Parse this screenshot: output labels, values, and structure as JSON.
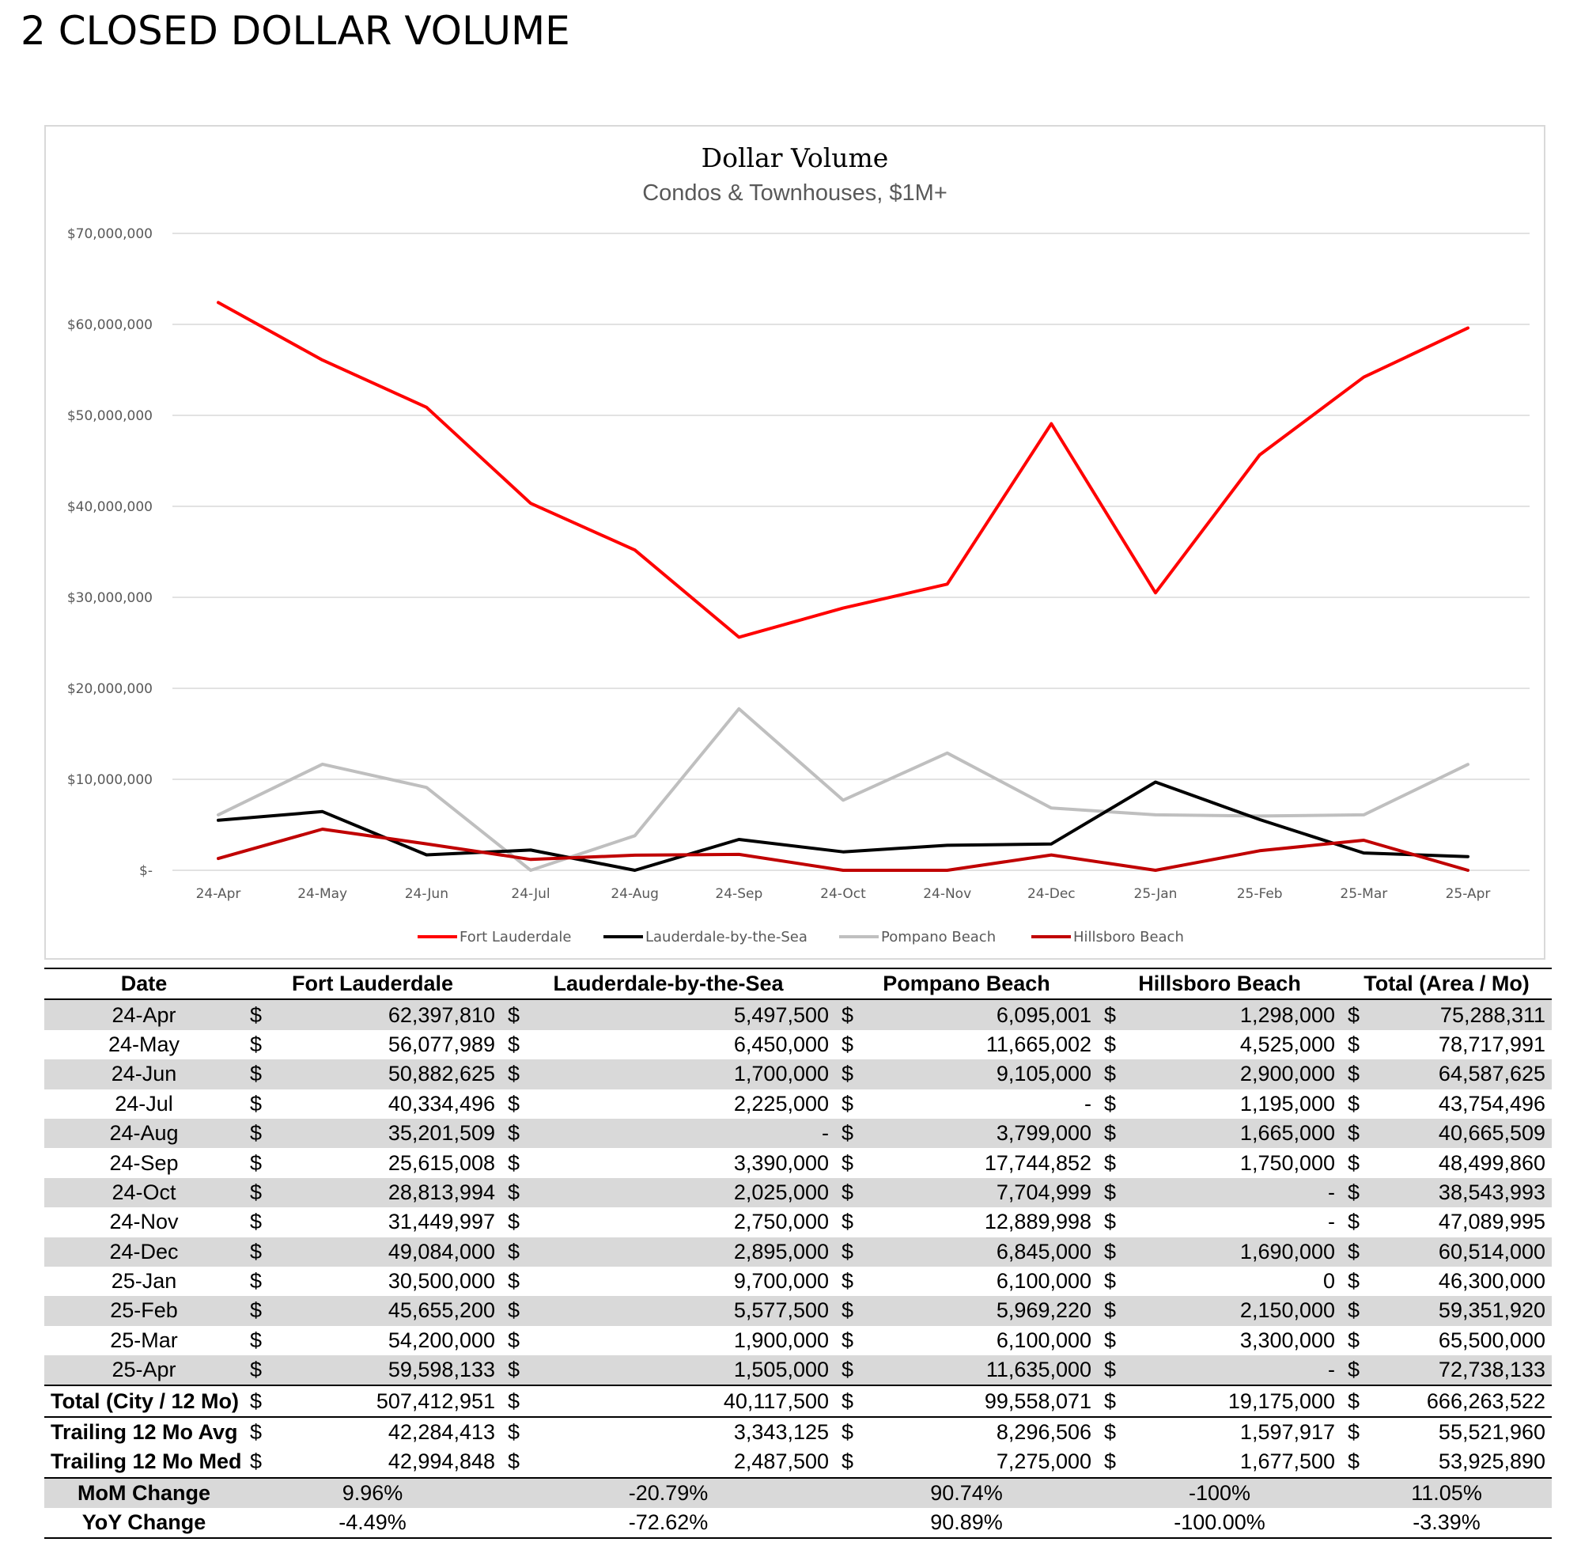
{
  "page": {
    "heading": "2 CLOSED DOLLAR VOLUME"
  },
  "chart_data": {
    "type": "line",
    "title": "Dollar Volume",
    "subtitle": "Condos & Townhouses, $1M+",
    "categories": [
      "24-Apr",
      "24-May",
      "24-Jun",
      "24-Jul",
      "24-Aug",
      "24-Sep",
      "24-Oct",
      "24-Nov",
      "24-Dec",
      "25-Jan",
      "25-Feb",
      "25-Mar",
      "25-Apr"
    ],
    "y_ticks": [
      "$-",
      "$10,000,000",
      "$20,000,000",
      "$30,000,000",
      "$40,000,000",
      "$50,000,000",
      "$60,000,000",
      "$70,000,000"
    ],
    "ylim": [
      0,
      70000000
    ],
    "grid": true,
    "legend_position": "bottom",
    "series": [
      {
        "name": "Fort Lauderdale",
        "color": "#ff0000",
        "values": [
          62397810,
          56077989,
          50882625,
          40334496,
          35201509,
          25615008,
          28813994,
          31449997,
          49084000,
          30500000,
          45655200,
          54200000,
          59598133
        ]
      },
      {
        "name": "Lauderdale-by-the-Sea",
        "color": "#000000",
        "values": [
          5497500,
          6450000,
          1700000,
          2225000,
          0,
          3390000,
          2025000,
          2750000,
          2895000,
          9700000,
          5577500,
          1900000,
          1505000
        ]
      },
      {
        "name": "Pompano Beach",
        "color": "#bfbfbf",
        "values": [
          6095001,
          11665002,
          9105000,
          0,
          3799000,
          17744852,
          7704999,
          12889998,
          6845000,
          6100000,
          5969220,
          6100000,
          11635000
        ]
      },
      {
        "name": "Hillsboro Beach",
        "color": "#c00000",
        "values": [
          1298000,
          4525000,
          2900000,
          1195000,
          1665000,
          1750000,
          0,
          0,
          1690000,
          0,
          2150000,
          3300000,
          0
        ]
      }
    ]
  },
  "table": {
    "headers": [
      "Date",
      "Fort Lauderdale",
      "Lauderdale-by-the-Sea",
      "Pompano Beach",
      "Hillsboro Beach",
      "Total (Area / Mo)"
    ],
    "currency_symbol": "$",
    "rows": [
      {
        "date": "24-Apr",
        "v": [
          "62,397,810",
          "5,497,500",
          "6,095,001",
          "1,298,000",
          "75,288,311"
        ]
      },
      {
        "date": "24-May",
        "v": [
          "56,077,989",
          "6,450,000",
          "11,665,002",
          "4,525,000",
          "78,717,991"
        ]
      },
      {
        "date": "24-Jun",
        "v": [
          "50,882,625",
          "1,700,000",
          "9,105,000",
          "2,900,000",
          "64,587,625"
        ]
      },
      {
        "date": "24-Jul",
        "v": [
          "40,334,496",
          "2,225,000",
          "-",
          "1,195,000",
          "43,754,496"
        ]
      },
      {
        "date": "24-Aug",
        "v": [
          "35,201,509",
          "-",
          "3,799,000",
          "1,665,000",
          "40,665,509"
        ]
      },
      {
        "date": "24-Sep",
        "v": [
          "25,615,008",
          "3,390,000",
          "17,744,852",
          "1,750,000",
          "48,499,860"
        ]
      },
      {
        "date": "24-Oct",
        "v": [
          "28,813,994",
          "2,025,000",
          "7,704,999",
          "-",
          "38,543,993"
        ]
      },
      {
        "date": "24-Nov",
        "v": [
          "31,449,997",
          "2,750,000",
          "12,889,998",
          "-",
          "47,089,995"
        ]
      },
      {
        "date": "24-Dec",
        "v": [
          "49,084,000",
          "2,895,000",
          "6,845,000",
          "1,690,000",
          "60,514,000"
        ]
      },
      {
        "date": "25-Jan",
        "v": [
          "30,500,000",
          "9,700,000",
          "6,100,000",
          "0",
          "46,300,000"
        ]
      },
      {
        "date": "25-Feb",
        "v": [
          "45,655,200",
          "5,577,500",
          "5,969,220",
          "2,150,000",
          "59,351,920"
        ]
      },
      {
        "date": "25-Mar",
        "v": [
          "54,200,000",
          "1,900,000",
          "6,100,000",
          "3,300,000",
          "65,500,000"
        ]
      },
      {
        "date": "25-Apr",
        "v": [
          "59,598,133",
          "1,505,000",
          "11,635,000",
          "-",
          "72,738,133"
        ]
      }
    ],
    "summary": [
      {
        "label": "Total (City / 12 Mo)",
        "v": [
          "507,412,951",
          "40,117,500",
          "99,558,071",
          "19,175,000",
          "666,263,522"
        ]
      },
      {
        "label": "Trailing 12 Mo Avg",
        "v": [
          "42,284,413",
          "3,343,125",
          "8,296,506",
          "1,597,917",
          "55,521,960"
        ]
      },
      {
        "label": "Trailing 12 Mo Med",
        "v": [
          "42,994,848",
          "2,487,500",
          "7,275,000",
          "1,677,500",
          "53,925,890"
        ]
      }
    ],
    "changes": [
      {
        "label": "MoM Change",
        "v": [
          "9.96%",
          "-20.79%",
          "90.74%",
          "-100%",
          "11.05%"
        ]
      },
      {
        "label": "YoY Change",
        "v": [
          "-4.49%",
          "-72.62%",
          "90.89%",
          "-100.00%",
          "-3.39%"
        ]
      }
    ]
  }
}
